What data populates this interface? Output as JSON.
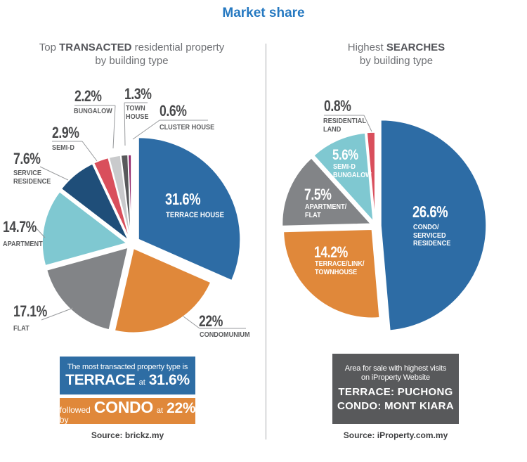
{
  "title": "Market share",
  "accent_color": "#2679c1",
  "leader_color": "#97999c",
  "left": {
    "heading_pre": "Top ",
    "heading_bold": "TRANSACTED",
    "heading_post": " residential property",
    "heading_line2": "by building type",
    "source": "Source: brickz.my",
    "callout1": {
      "bg": "#2e6da4",
      "line1": "The most transacted property type is",
      "big1": "TERRACE",
      "mid": "at",
      "big2": "31.6%"
    },
    "callout2": {
      "bg": "#e0883a",
      "pre": "followed by",
      "big1": "CONDO",
      "mid": "at",
      "big2": "22%"
    }
  },
  "right": {
    "heading_pre": "Highest ",
    "heading_bold": "SEARCHES",
    "heading_post": "",
    "heading_line2": "by building type",
    "source": "Source: iProperty.com.my",
    "callout": {
      "bg": "#58595b",
      "line1": "Area for sale with highest visits",
      "line2": "on iProperty Website",
      "line3": "TERRACE: PUCHONG",
      "line4": "CONDO: MONT KIARA"
    }
  },
  "chart_data": [
    {
      "type": "pie",
      "title": "Top TRANSACTED residential property by building type",
      "unit": "%",
      "slices": [
        {
          "label": "TERRACE HOUSE",
          "pct": "31.6%",
          "value": 31.6,
          "color": "#2d6ca5"
        },
        {
          "label": "CONDOMUNIUM",
          "pct": "22%",
          "value": 22,
          "color": "#e0883a"
        },
        {
          "label": "FLAT",
          "pct": "17.1%",
          "value": 17.1,
          "color": "#828487"
        },
        {
          "label": "APARTMENT",
          "pct": "14.7%",
          "value": 14.7,
          "color": "#7fc8d1"
        },
        {
          "label": "SERVICE RESIDENCE",
          "label_lines": [
            "SERVICE",
            "RESIDENCE"
          ],
          "pct": "7.6%",
          "value": 7.6,
          "color": "#1f4e79"
        },
        {
          "label": "SEMI-D",
          "pct": "2.9%",
          "value": 2.9,
          "color": "#d94f5c"
        },
        {
          "label": "BUNGALOW",
          "pct": "2.2%",
          "value": 2.2,
          "color": "#c9cacc"
        },
        {
          "label": "TOWN HOUSE",
          "label_lines": [
            "TOWN",
            "HOUSE"
          ],
          "pct": "1.3%",
          "value": 1.3,
          "color": "#58595b"
        },
        {
          "label": "CLUSTER HOUSE",
          "pct": "0.6%",
          "value": 0.6,
          "color": "#93266b"
        }
      ]
    },
    {
      "type": "pie",
      "title": "Highest SEARCHES by building type",
      "unit": "%",
      "slices": [
        {
          "label": "CONDO/SERVICED RESIDENCE",
          "label_lines": [
            "CONDO/",
            "SERVICED",
            "RESIDENCE"
          ],
          "pct": "26.6%",
          "value": 26.6,
          "color": "#2d6ca5"
        },
        {
          "label": "TERRACE/LINK/TOWNHOUSE",
          "label_lines": [
            "TERRACE/LINK/",
            "TOWNHOUSE"
          ],
          "pct": "14.2%",
          "value": 14.2,
          "color": "#e0883a"
        },
        {
          "label": "APARTMENT/FLAT",
          "label_lines": [
            "APARTMENT/",
            "FLAT"
          ],
          "pct": "7.5%",
          "value": 7.5,
          "color": "#828487"
        },
        {
          "label": "SEMI-D BUNGALOW",
          "label_lines": [
            "SEMI-D",
            "BUNGALOW"
          ],
          "pct": "5.6%",
          "value": 5.6,
          "color": "#7fc8d1"
        },
        {
          "label": "RESIDENTIAL LAND",
          "label_lines": [
            "RESIDENTIAL",
            "LAND"
          ],
          "pct": "0.8%",
          "value": 0.8,
          "color": "#d94f5c"
        }
      ]
    }
  ]
}
